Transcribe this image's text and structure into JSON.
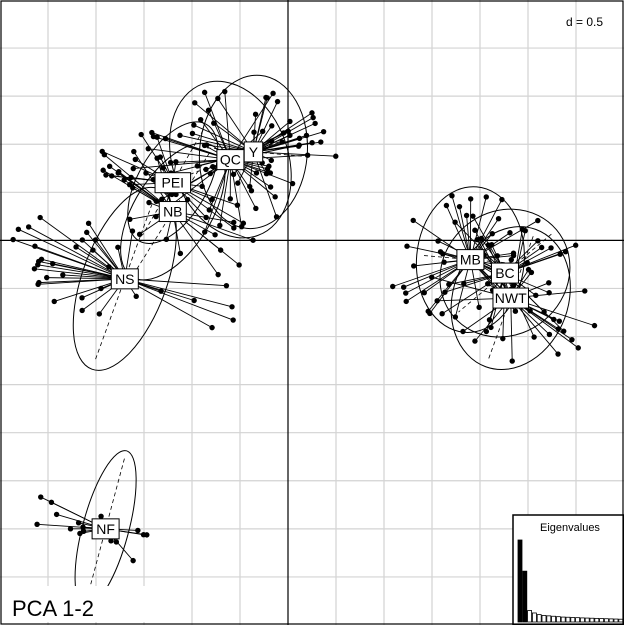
{
  "chart_data": {
    "type": "scatter",
    "title": "PCA 1-2",
    "scale_label": "d = 0.5",
    "grid": true,
    "xlim": [
      -1.5,
      1.75
    ],
    "ylim": [
      -2.0,
      1.25
    ],
    "groups": [
      {
        "name": "PEI",
        "centroid": [
          -0.6,
          0.3
        ],
        "spread": [
          0.18,
          0.35
        ],
        "tilt": 60,
        "n": 22,
        "seed": 11
      },
      {
        "name": "NB",
        "centroid": [
          -0.6,
          0.15
        ],
        "spread": [
          0.2,
          0.4
        ],
        "tilt": 58,
        "n": 24,
        "seed": 23
      },
      {
        "name": "NS",
        "centroid": [
          -0.85,
          -0.2
        ],
        "spread": [
          0.22,
          0.5
        ],
        "tilt": 70,
        "n": 36,
        "seed": 37
      },
      {
        "name": "QC",
        "centroid": [
          -0.3,
          0.42
        ],
        "spread": [
          0.42,
          0.3
        ],
        "tilt": 20,
        "n": 40,
        "seed": 41
      },
      {
        "name": "Y",
        "centroid": [
          -0.18,
          0.46
        ],
        "spread": [
          0.4,
          0.28
        ],
        "tilt": -5,
        "n": 34,
        "seed": 53
      },
      {
        "name": "MB",
        "centroid": [
          0.95,
          -0.1
        ],
        "spread": [
          0.38,
          0.28
        ],
        "tilt": -5,
        "n": 34,
        "seed": 61
      },
      {
        "name": "BC",
        "centroid": [
          1.13,
          -0.17
        ],
        "spread": [
          0.32,
          0.35
        ],
        "tilt": 40,
        "n": 30,
        "seed": 71
      },
      {
        "name": "NWT",
        "centroid": [
          1.16,
          -0.3
        ],
        "spread": [
          0.3,
          0.38
        ],
        "tilt": 70,
        "n": 28,
        "seed": 83
      },
      {
        "name": "NF",
        "centroid": [
          -0.95,
          -1.5
        ],
        "spread": [
          0.12,
          0.42
        ],
        "tilt": 75,
        "n": 18,
        "seed": 97
      }
    ],
    "inset": {
      "title": "Eigenvalues",
      "values": [
        1.0,
        0.62,
        0.14,
        0.11,
        0.09,
        0.08,
        0.075,
        0.07,
        0.065,
        0.06,
        0.058,
        0.055,
        0.053,
        0.05,
        0.048,
        0.046,
        0.044,
        0.042,
        0.04,
        0.038,
        0.036,
        0.034,
        0.032
      ]
    }
  }
}
